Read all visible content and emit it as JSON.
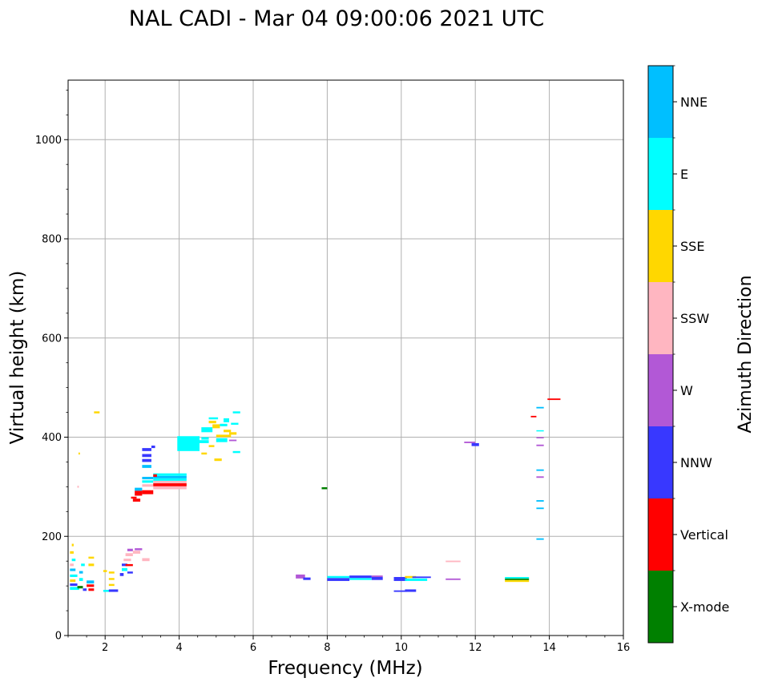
{
  "chart_data": {
    "type": "scatter",
    "title": "NAL CADI - Mar 04 09:00:06 2021 UTC",
    "xlabel": "Frequency (MHz)",
    "ylabel": "Virtual height (km)",
    "xlim": [
      1,
      16
    ],
    "ylim": [
      0,
      1120
    ],
    "xticks": [
      2,
      4,
      6,
      8,
      10,
      12,
      14,
      16
    ],
    "yticks": [
      0,
      200,
      400,
      600,
      800,
      1000
    ],
    "grid": true,
    "colorbar": {
      "title": "Azimuth Direction",
      "categories": [
        {
          "name": "X-mode",
          "color": "#008000"
        },
        {
          "name": "Vertical",
          "color": "#ff0000"
        },
        {
          "name": "NNW",
          "color": "#3838ff"
        },
        {
          "name": "W",
          "color": "#b258d6"
        },
        {
          "name": "SSW",
          "color": "#ffb6c1"
        },
        {
          "name": "SSE",
          "color": "#ffd700"
        },
        {
          "name": "E",
          "color": "#00ffff"
        },
        {
          "name": "NNE",
          "color": "#00bfff"
        }
      ]
    },
    "echoes": [
      {
        "x": 1.05,
        "y": 92,
        "w": 0.25,
        "h": 6,
        "dir": "E"
      },
      {
        "x": 1.05,
        "y": 100,
        "w": 0.2,
        "h": 5,
        "dir": "NNW"
      },
      {
        "x": 1.05,
        "y": 108,
        "w": 0.15,
        "h": 5,
        "dir": "SSE"
      },
      {
        "x": 1.05,
        "y": 118,
        "w": 0.2,
        "h": 5,
        "dir": "E"
      },
      {
        "x": 1.05,
        "y": 130,
        "w": 0.15,
        "h": 5,
        "dir": "NNE"
      },
      {
        "x": 1.05,
        "y": 140,
        "w": 0.1,
        "h": 5,
        "dir": "SSW"
      },
      {
        "x": 1.1,
        "y": 150,
        "w": 0.1,
        "h": 5,
        "dir": "E"
      },
      {
        "x": 1.05,
        "y": 165,
        "w": 0.1,
        "h": 5,
        "dir": "SSE"
      },
      {
        "x": 1.1,
        "y": 180,
        "w": 0.05,
        "h": 5,
        "dir": "SSE"
      },
      {
        "x": 1.25,
        "y": 95,
        "w": 0.15,
        "h": 5,
        "dir": "X-mode"
      },
      {
        "x": 1.3,
        "y": 110,
        "w": 0.1,
        "h": 6,
        "dir": "E"
      },
      {
        "x": 1.3,
        "y": 125,
        "w": 0.1,
        "h": 5,
        "dir": "NNE"
      },
      {
        "x": 1.35,
        "y": 140,
        "w": 0.1,
        "h": 5,
        "dir": "E"
      },
      {
        "x": 1.4,
        "y": 90,
        "w": 0.1,
        "h": 5,
        "dir": "NNW"
      },
      {
        "x": 1.55,
        "y": 90,
        "w": 0.15,
        "h": 5,
        "dir": "Vertical"
      },
      {
        "x": 1.5,
        "y": 98,
        "w": 0.2,
        "h": 5,
        "dir": "Vertical"
      },
      {
        "x": 1.5,
        "y": 105,
        "w": 0.2,
        "h": 6,
        "dir": "NNE"
      },
      {
        "x": 1.55,
        "y": 140,
        "w": 0.15,
        "h": 5,
        "dir": "SSE"
      },
      {
        "x": 1.55,
        "y": 155,
        "w": 0.15,
        "h": 4,
        "dir": "SSE"
      },
      {
        "x": 1.7,
        "y": 448,
        "w": 0.15,
        "h": 4,
        "dir": "SSE"
      },
      {
        "x": 1.28,
        "y": 365,
        "w": 0.04,
        "h": 4,
        "dir": "SSE"
      },
      {
        "x": 1.25,
        "y": 298,
        "w": 0.04,
        "h": 4,
        "dir": "SSW"
      },
      {
        "x": 1.95,
        "y": 88,
        "w": 0.2,
        "h": 4,
        "dir": "E"
      },
      {
        "x": 2.1,
        "y": 88,
        "w": 0.25,
        "h": 5,
        "dir": "NNW"
      },
      {
        "x": 1.95,
        "y": 128,
        "w": 0.1,
        "h": 4,
        "dir": "SSE"
      },
      {
        "x": 2.1,
        "y": 100,
        "w": 0.15,
        "h": 4,
        "dir": "SSE"
      },
      {
        "x": 2.1,
        "y": 112,
        "w": 0.15,
        "h": 4,
        "dir": "SSE"
      },
      {
        "x": 2.1,
        "y": 125,
        "w": 0.15,
        "h": 4,
        "dir": "SSE"
      },
      {
        "x": 2.4,
        "y": 120,
        "w": 0.1,
        "h": 6,
        "dir": "NNW"
      },
      {
        "x": 2.45,
        "y": 130,
        "w": 0.15,
        "h": 6,
        "dir": "E"
      },
      {
        "x": 2.45,
        "y": 140,
        "w": 0.15,
        "h": 5,
        "dir": "NNW"
      },
      {
        "x": 2.5,
        "y": 150,
        "w": 0.2,
        "h": 5,
        "dir": "SSW"
      },
      {
        "x": 2.55,
        "y": 160,
        "w": 0.2,
        "h": 6,
        "dir": "SSW"
      },
      {
        "x": 2.6,
        "y": 170,
        "w": 0.15,
        "h": 5,
        "dir": "W"
      },
      {
        "x": 2.55,
        "y": 140,
        "w": 0.2,
        "h": 4,
        "dir": "Vertical"
      },
      {
        "x": 2.6,
        "y": 125,
        "w": 0.15,
        "h": 4,
        "dir": "NNW"
      },
      {
        "x": 2.75,
        "y": 165,
        "w": 0.2,
        "h": 6,
        "dir": "SSW"
      },
      {
        "x": 2.8,
        "y": 172,
        "w": 0.2,
        "h": 4,
        "dir": "W"
      },
      {
        "x": 3.0,
        "y": 150,
        "w": 0.2,
        "h": 6,
        "dir": "SSW"
      },
      {
        "x": 2.75,
        "y": 270,
        "w": 0.2,
        "h": 6,
        "dir": "Vertical"
      },
      {
        "x": 2.7,
        "y": 276,
        "w": 0.15,
        "h": 4,
        "dir": "Vertical"
      },
      {
        "x": 2.8,
        "y": 282,
        "w": 0.2,
        "h": 10,
        "dir": "Vertical"
      },
      {
        "x": 2.8,
        "y": 292,
        "w": 0.2,
        "h": 6,
        "dir": "NNE"
      },
      {
        "x": 3.0,
        "y": 285,
        "w": 0.3,
        "h": 8,
        "dir": "Vertical"
      },
      {
        "x": 3.0,
        "y": 300,
        "w": 0.3,
        "h": 5,
        "dir": "SSW"
      },
      {
        "x": 3.0,
        "y": 308,
        "w": 0.3,
        "h": 5,
        "dir": "E"
      },
      {
        "x": 3.0,
        "y": 315,
        "w": 0.3,
        "h": 5,
        "dir": "NNE"
      },
      {
        "x": 3.0,
        "y": 338,
        "w": 0.25,
        "h": 6,
        "dir": "NNE"
      },
      {
        "x": 3.0,
        "y": 350,
        "w": 0.25,
        "h": 6,
        "dir": "NNW"
      },
      {
        "x": 3.0,
        "y": 360,
        "w": 0.25,
        "h": 6,
        "dir": "NNW"
      },
      {
        "x": 3.0,
        "y": 372,
        "w": 0.25,
        "h": 6,
        "dir": "NNW"
      },
      {
        "x": 3.25,
        "y": 378,
        "w": 0.1,
        "h": 5,
        "dir": "NNW"
      },
      {
        "x": 3.3,
        "y": 295,
        "w": 0.9,
        "h": 6,
        "dir": "SSW"
      },
      {
        "x": 3.3,
        "y": 301,
        "w": 0.9,
        "h": 6,
        "dir": "Vertical"
      },
      {
        "x": 3.3,
        "y": 307,
        "w": 0.9,
        "h": 5,
        "dir": "SSW"
      },
      {
        "x": 3.3,
        "y": 312,
        "w": 0.9,
        "h": 5,
        "dir": "E"
      },
      {
        "x": 3.3,
        "y": 317,
        "w": 0.9,
        "h": 5,
        "dir": "NNE"
      },
      {
        "x": 3.3,
        "y": 322,
        "w": 0.9,
        "h": 5,
        "dir": "E"
      },
      {
        "x": 3.3,
        "y": 320,
        "w": 0.1,
        "h": 5,
        "dir": "Vertical"
      },
      {
        "x": 3.95,
        "y": 372,
        "w": 0.6,
        "h": 30,
        "dir": "E"
      },
      {
        "x": 4.5,
        "y": 388,
        "w": 0.3,
        "h": 6,
        "dir": "E"
      },
      {
        "x": 4.6,
        "y": 395,
        "w": 0.2,
        "h": 5,
        "dir": "E"
      },
      {
        "x": 4.6,
        "y": 410,
        "w": 0.3,
        "h": 10,
        "dir": "E"
      },
      {
        "x": 4.9,
        "y": 418,
        "w": 0.2,
        "h": 8,
        "dir": "SSE"
      },
      {
        "x": 4.8,
        "y": 428,
        "w": 0.2,
        "h": 5,
        "dir": "SSE"
      },
      {
        "x": 4.8,
        "y": 436,
        "w": 0.25,
        "h": 4,
        "dir": "E"
      },
      {
        "x": 4.8,
        "y": 380,
        "w": 0.15,
        "h": 4,
        "dir": "SSE"
      },
      {
        "x": 4.6,
        "y": 365,
        "w": 0.15,
        "h": 4,
        "dir": "SSE"
      },
      {
        "x": 4.95,
        "y": 352,
        "w": 0.2,
        "h": 5,
        "dir": "SSE"
      },
      {
        "x": 5.0,
        "y": 390,
        "w": 0.3,
        "h": 8,
        "dir": "E"
      },
      {
        "x": 5.0,
        "y": 400,
        "w": 0.4,
        "h": 5,
        "dir": "SSE"
      },
      {
        "x": 5.2,
        "y": 410,
        "w": 0.2,
        "h": 5,
        "dir": "SSE"
      },
      {
        "x": 5.1,
        "y": 422,
        "w": 0.2,
        "h": 5,
        "dir": "E"
      },
      {
        "x": 5.2,
        "y": 430,
        "w": 0.15,
        "h": 8,
        "dir": "E"
      },
      {
        "x": 5.35,
        "y": 405,
        "w": 0.2,
        "h": 5,
        "dir": "SSE"
      },
      {
        "x": 5.35,
        "y": 392,
        "w": 0.2,
        "h": 3,
        "dir": "W"
      },
      {
        "x": 5.4,
        "y": 425,
        "w": 0.2,
        "h": 4,
        "dir": "E"
      },
      {
        "x": 5.45,
        "y": 448,
        "w": 0.2,
        "h": 4,
        "dir": "E"
      },
      {
        "x": 5.45,
        "y": 368,
        "w": 0.2,
        "h": 4,
        "dir": "E"
      },
      {
        "x": 7.85,
        "y": 295,
        "w": 0.15,
        "h": 4,
        "dir": "X-mode"
      },
      {
        "x": 7.15,
        "y": 115,
        "w": 0.25,
        "h": 8,
        "dir": "W"
      },
      {
        "x": 7.35,
        "y": 112,
        "w": 0.2,
        "h": 5,
        "dir": "NNW"
      },
      {
        "x": 8.0,
        "y": 110,
        "w": 0.6,
        "h": 6,
        "dir": "NNW"
      },
      {
        "x": 8.0,
        "y": 116,
        "w": 0.6,
        "h": 4,
        "dir": "E"
      },
      {
        "x": 8.6,
        "y": 112,
        "w": 0.6,
        "h": 4,
        "dir": "E"
      },
      {
        "x": 8.6,
        "y": 116,
        "w": 0.6,
        "h": 5,
        "dir": "NNW"
      },
      {
        "x": 9.2,
        "y": 112,
        "w": 0.3,
        "h": 6,
        "dir": "NNW"
      },
      {
        "x": 9.2,
        "y": 118,
        "w": 0.3,
        "h": 3,
        "dir": "W"
      },
      {
        "x": 9.8,
        "y": 110,
        "w": 0.35,
        "h": 8,
        "dir": "NNW"
      },
      {
        "x": 10.1,
        "y": 110,
        "w": 0.6,
        "h": 5,
        "dir": "E"
      },
      {
        "x": 10.1,
        "y": 116,
        "w": 0.3,
        "h": 4,
        "dir": "SSE"
      },
      {
        "x": 10.3,
        "y": 116,
        "w": 0.5,
        "h": 3,
        "dir": "NNW"
      },
      {
        "x": 9.8,
        "y": 88,
        "w": 0.35,
        "h": 3,
        "dir": "NNW"
      },
      {
        "x": 10.1,
        "y": 88,
        "w": 0.3,
        "h": 5,
        "dir": "NNW"
      },
      {
        "x": 11.2,
        "y": 148,
        "w": 0.4,
        "h": 3,
        "dir": "SSW"
      },
      {
        "x": 11.2,
        "y": 112,
        "w": 0.4,
        "h": 3,
        "dir": "W"
      },
      {
        "x": 11.7,
        "y": 388,
        "w": 0.3,
        "h": 3,
        "dir": "W"
      },
      {
        "x": 11.9,
        "y": 382,
        "w": 0.2,
        "h": 6,
        "dir": "NNW"
      },
      {
        "x": 12.8,
        "y": 108,
        "w": 0.65,
        "h": 4,
        "dir": "SSE"
      },
      {
        "x": 12.8,
        "y": 112,
        "w": 0.65,
        "h": 3,
        "dir": "X-mode"
      },
      {
        "x": 12.8,
        "y": 115,
        "w": 0.65,
        "h": 3,
        "dir": "E"
      },
      {
        "x": 13.5,
        "y": 440,
        "w": 0.15,
        "h": 3,
        "dir": "Vertical"
      },
      {
        "x": 13.95,
        "y": 475,
        "w": 0.35,
        "h": 3,
        "dir": "Vertical"
      },
      {
        "x": 13.65,
        "y": 458,
        "w": 0.2,
        "h": 3,
        "dir": "NNE"
      },
      {
        "x": 13.65,
        "y": 412,
        "w": 0.2,
        "h": 2,
        "dir": "E"
      },
      {
        "x": 13.65,
        "y": 398,
        "w": 0.2,
        "h": 2,
        "dir": "W"
      },
      {
        "x": 13.65,
        "y": 382,
        "w": 0.2,
        "h": 3,
        "dir": "W"
      },
      {
        "x": 13.65,
        "y": 332,
        "w": 0.2,
        "h": 3,
        "dir": "NNE"
      },
      {
        "x": 13.65,
        "y": 318,
        "w": 0.2,
        "h": 3,
        "dir": "W"
      },
      {
        "x": 13.65,
        "y": 270,
        "w": 0.2,
        "h": 3,
        "dir": "NNE"
      },
      {
        "x": 13.65,
        "y": 255,
        "w": 0.2,
        "h": 3,
        "dir": "NNE"
      },
      {
        "x": 13.65,
        "y": 193,
        "w": 0.2,
        "h": 3,
        "dir": "NNE"
      }
    ]
  }
}
